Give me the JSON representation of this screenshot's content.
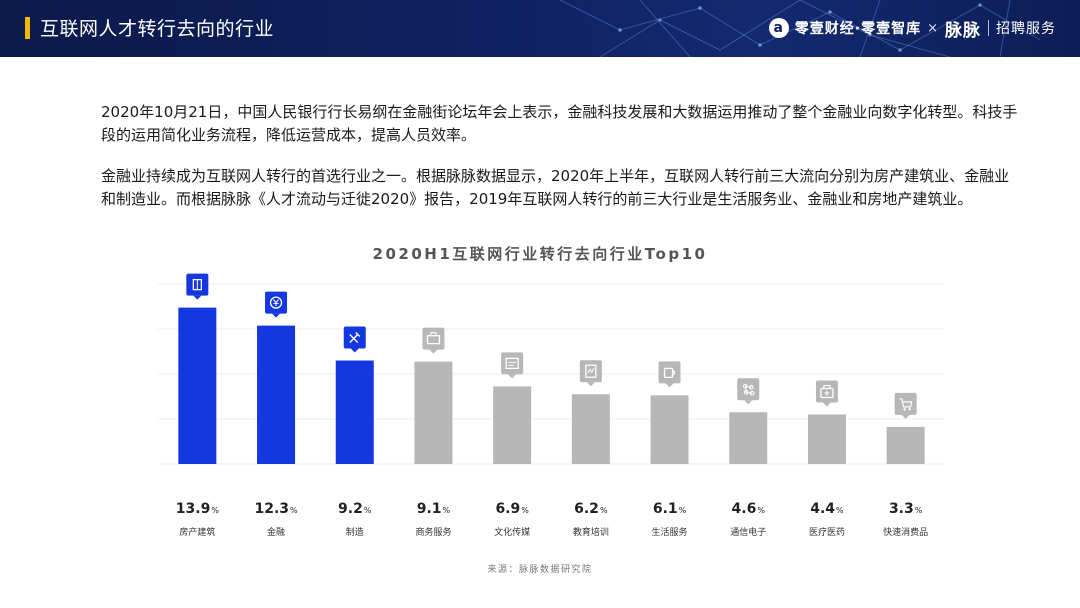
{
  "header": {
    "title": "互联网人才转行去向的行业",
    "brand": {
      "logo_glyph": "a",
      "name": "零壹财经·零壹智库",
      "times": "×",
      "partner": "脉脉",
      "service": "招聘服务"
    }
  },
  "paragraphs": [
    "2020年10月21日，中国人民银行行长易纲在金融街论坛年会上表示，金融科技发展和大数据运用推动了整个金融业向数字化转型。科技手段的运用简化业务流程，降低运营成本，提高人员效率。",
    "金融业持续成为互联网人转行的首选行业之一。根据脉脉数据显示，2020年上半年，互联网人转行前三大流向分别为房产建筑业、金融业和制造业。而根据脉脉《人才流动与迁徙2020》报告，2019年互联网人转行的前三大行业是生活服务业、金融业和房地产建筑业。"
  ],
  "source": "来源：脉脉数据研究院",
  "colors": {
    "highlight": "#1537e0",
    "other": "#b7b7b7",
    "accent_bar": "#f2b600",
    "header_bg": "#0f2160"
  },
  "chart_data": {
    "type": "bar",
    "title": "2020H1互联网行业转行去向行业Top10",
    "unit": "%",
    "categories": [
      "房产建筑",
      "金融",
      "制造",
      "商务服务",
      "文化传媒",
      "教育培训",
      "生活服务",
      "通信电子",
      "医疗医药",
      "快速消费品"
    ],
    "values": [
      13.9,
      12.3,
      9.2,
      9.1,
      6.9,
      6.2,
      6.1,
      4.6,
      4.4,
      3.3
    ],
    "value_labels": [
      "13.9",
      "12.3",
      "9.2",
      "9.1",
      "6.9",
      "6.2",
      "6.1",
      "4.6",
      "4.4",
      "3.3"
    ],
    "highlighted": [
      true,
      true,
      true,
      false,
      false,
      false,
      false,
      false,
      false,
      false
    ],
    "icons": [
      "building-icon",
      "yuan-coin-icon",
      "wrench-icon",
      "briefcase-icon",
      "media-icon",
      "book-icon",
      "coffee-icon",
      "circuit-icon",
      "medical-kit-icon",
      "cart-icon"
    ],
    "ylim": [
      0,
      16
    ],
    "grid": true,
    "legend": "none",
    "xlabel": "",
    "ylabel": ""
  }
}
